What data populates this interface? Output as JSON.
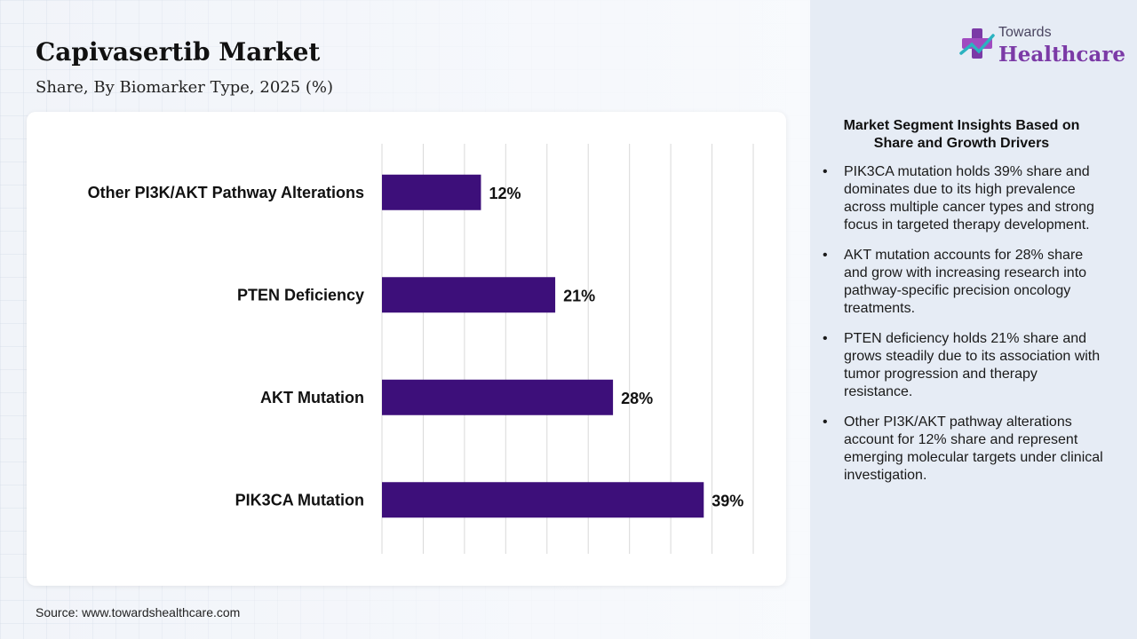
{
  "header": {
    "title": "Capivasertib Market",
    "subtitle": "Share, By Biomarker Type, 2025 (%)"
  },
  "logo": {
    "top": "Towards",
    "main": "Healthcare"
  },
  "chart_data": {
    "type": "bar",
    "orientation": "horizontal",
    "categories": [
      "Other PI3K/AKT Pathway Alterations",
      "PTEN Deficiency",
      "AKT Mutation",
      "PIK3CA Mutation"
    ],
    "values": [
      12,
      21,
      28,
      39
    ],
    "value_labels": [
      "12%",
      "21%",
      "28%",
      "39%"
    ],
    "xlim": [
      0,
      45
    ],
    "grid": true,
    "bar_color": "#3d0f7a"
  },
  "insights": {
    "title": "Market Segment Insights Based on Share and Growth Drivers",
    "items": [
      "PIK3CA mutation holds 39% share and dominates due to its high prevalence across multiple cancer types and strong focus in targeted therapy development.",
      "AKT mutation accounts for 28% share and grow with increasing research into pathway-specific precision oncology treatments.",
      "PTEN deficiency holds 21% share and grows steadily due to its association with tumor progression and therapy resistance.",
      "Other PI3K/AKT pathway alterations account for 12% share and represent emerging molecular targets under clinical investigation."
    ]
  },
  "source": "Source: www.towardshealthcare.com",
  "colors": {
    "accent": "#3d0f7a",
    "brand": "#7b3aa6",
    "panel": "#e6ecf5"
  }
}
